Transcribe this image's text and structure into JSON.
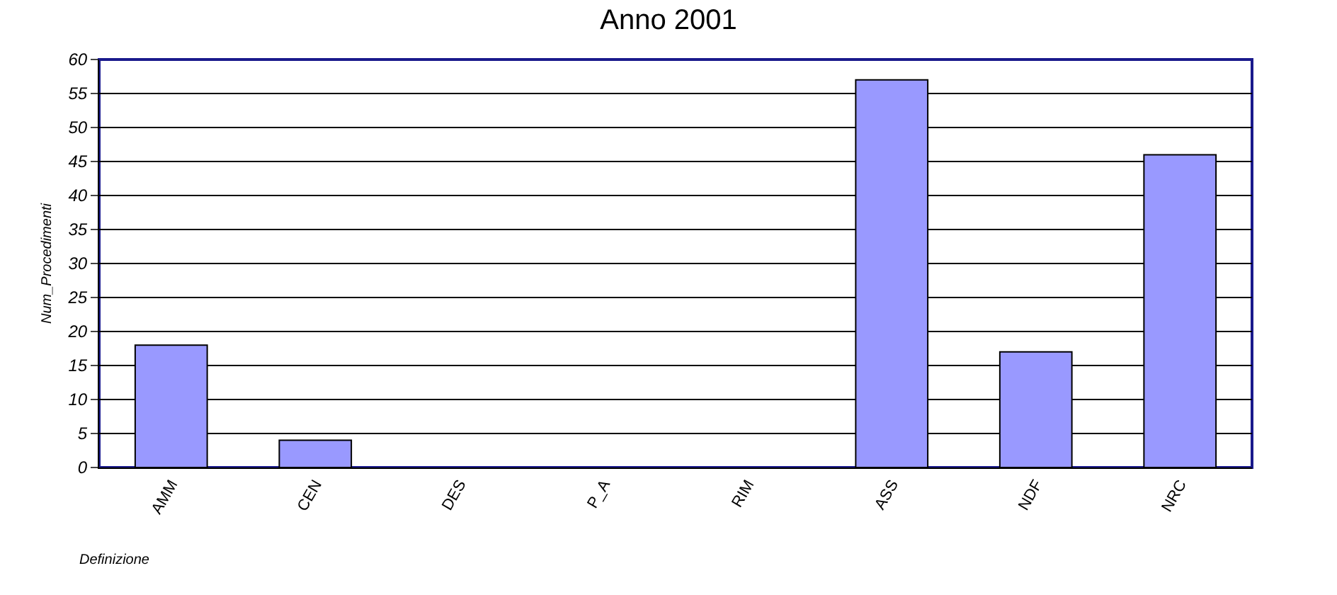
{
  "chart_data": {
    "type": "bar",
    "title": "Anno 2001",
    "xlabel": "Definizione",
    "ylabel": "Num_Procedimenti",
    "categories": [
      "AMM",
      "CEN",
      "DES",
      "P_A",
      "RIM",
      "ASS",
      "NDF",
      "NRC"
    ],
    "values": [
      18,
      4,
      0,
      0,
      0,
      57,
      17,
      46
    ],
    "color": "#9999ff",
    "ylim": [
      0,
      60
    ],
    "yticks": [
      0,
      5,
      10,
      15,
      20,
      25,
      30,
      35,
      40,
      45,
      50,
      55,
      60
    ],
    "grid": "y"
  }
}
